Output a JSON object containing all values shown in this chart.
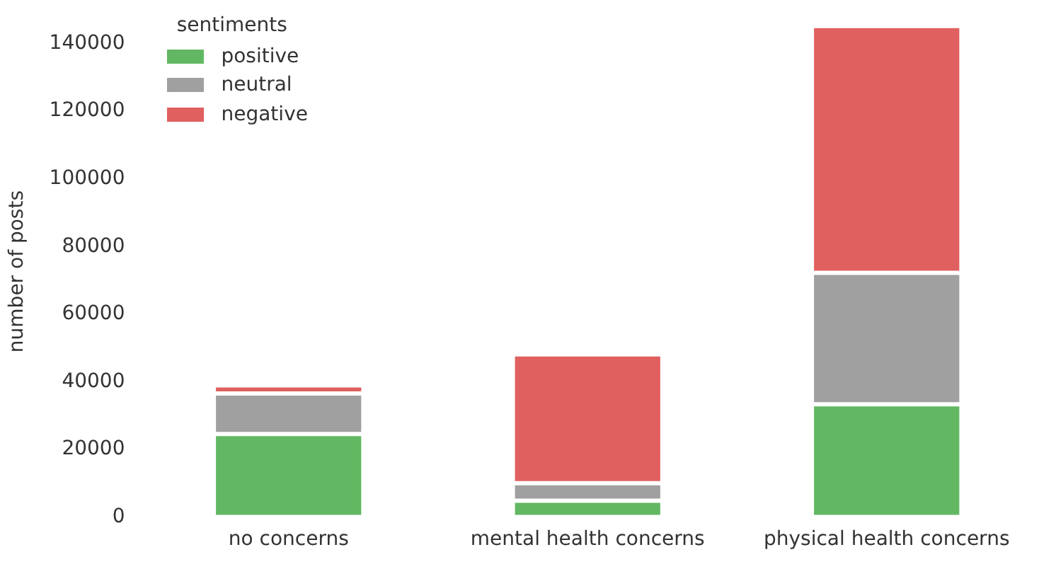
{
  "chart_data": {
    "type": "bar",
    "stacked": true,
    "ylabel": "number of posts",
    "legend_title": "sentiments",
    "legend": "top left",
    "grid": false,
    "categories": [
      "no concerns",
      "mental health concerns",
      "physical health concerns"
    ],
    "series": [
      {
        "name": "positive",
        "color": "#62b862",
        "values": [
          24500,
          4800,
          33300
        ]
      },
      {
        "name": "neutral",
        "color": "#a0a0a0",
        "values": [
          12000,
          5200,
          38900
        ]
      },
      {
        "name": "negative",
        "color": "#e05f5f",
        "values": [
          2400,
          38100,
          73000
        ]
      }
    ],
    "ylim": [
      0,
      145200
    ],
    "yticks": [
      0,
      20000,
      40000,
      60000,
      80000,
      100000,
      120000,
      140000
    ]
  }
}
